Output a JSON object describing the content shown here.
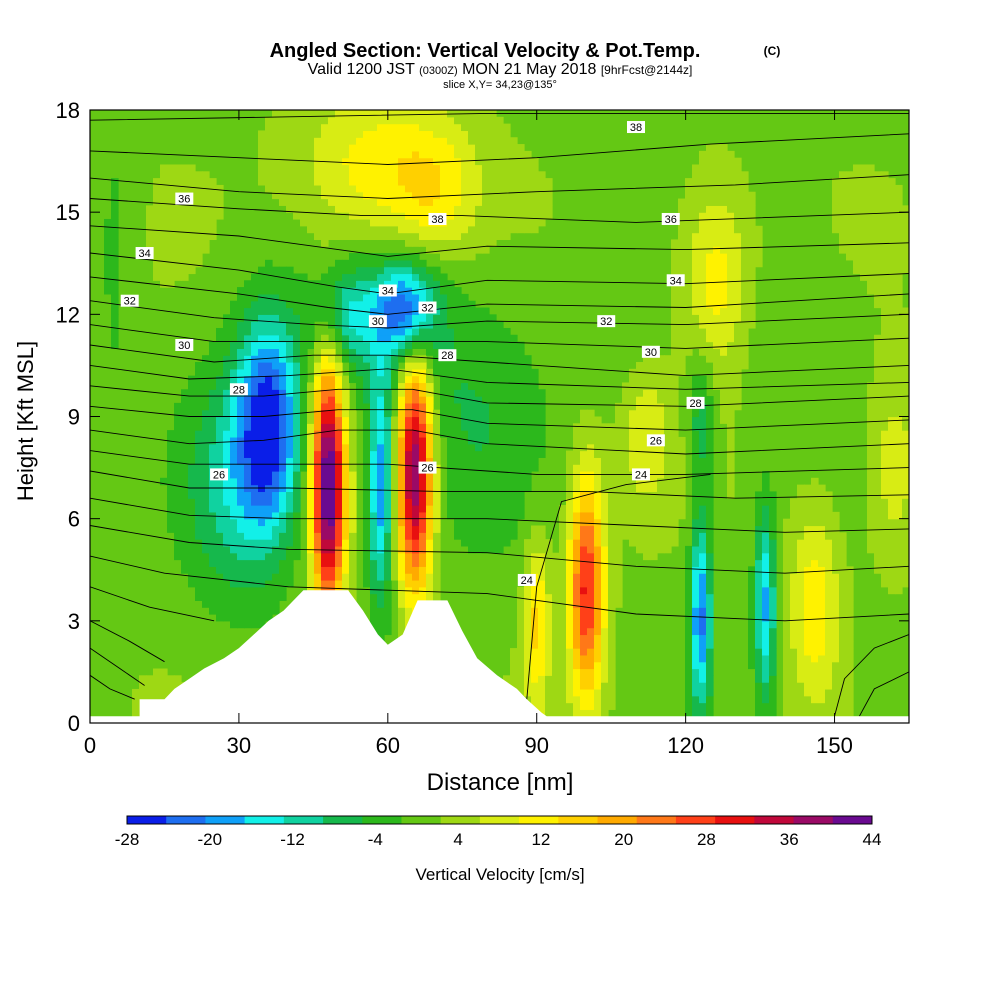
{
  "chart_data": {
    "type": "heatmap",
    "title": "Angled Section: Vertical Velocity & Pot.Temp.",
    "title_unit": "(C)",
    "subtitle_parts": {
      "valid": "Valid 1200 JST",
      "utc": "(0300Z)",
      "date": "MON 21 May 2018",
      "fcst": "[9hrFcst@2144z]"
    },
    "slice_text": "slice X,Y= 34,23@135°",
    "xlabel": "Distance [nm]",
    "ylabel": "Height [Kft MSL]",
    "xlim": [
      0,
      165
    ],
    "ylim": [
      0,
      18
    ],
    "x_ticks": [
      0,
      30,
      60,
      90,
      120,
      150
    ],
    "y_ticks": [
      0,
      3,
      6,
      9,
      12,
      15,
      18
    ],
    "colorbar": {
      "label": "Vertical Velocity [cm/s]",
      "ticks": [
        -28,
        -20,
        -12,
        -4,
        4,
        12,
        20,
        28,
        36,
        44
      ],
      "levels": [
        -28,
        -24,
        -20,
        -16,
        -12,
        -8,
        -4,
        0,
        4,
        8,
        12,
        16,
        20,
        24,
        28,
        32,
        36,
        40,
        44
      ],
      "colors": [
        "#0a1ee8",
        "#1e6ef0",
        "#0fa0f8",
        "#12f0e8",
        "#10d2a0",
        "#16b84c",
        "#2cb81c",
        "#64c814",
        "#9ed814",
        "#d8ec14",
        "#fff200",
        "#ffd000",
        "#ffaa00",
        "#ff7818",
        "#ff4018",
        "#e81010",
        "#c0083a",
        "#9a0a66",
        "#6a0a90"
      ]
    },
    "features": [
      {
        "x": 36,
        "y": 8.8,
        "sx": 4.5,
        "sy": 2.2,
        "w": -28
      },
      {
        "x": 29,
        "y": 7.0,
        "sx": 7,
        "sy": 2.5,
        "w": -12
      },
      {
        "x": 48,
        "y": 7.0,
        "sx": 2.3,
        "sy": 2.6,
        "w": 46
      },
      {
        "x": 58.5,
        "y": 6.8,
        "sx": 1.8,
        "sy": 2.3,
        "w": -22
      },
      {
        "x": 65.5,
        "y": 7.5,
        "sx": 2.5,
        "sy": 2.5,
        "w": 42
      },
      {
        "x": 64,
        "y": 12.2,
        "sx": 4,
        "sy": 1.0,
        "w": -24
      },
      {
        "x": 52,
        "y": 12.0,
        "sx": 5,
        "sy": 1.0,
        "w": -12
      },
      {
        "x": 60,
        "y": 11.0,
        "sx": 9,
        "sy": 2.0,
        "w": -6
      },
      {
        "x": 78,
        "y": 9.0,
        "sx": 9,
        "sy": 3.0,
        "w": -6
      },
      {
        "x": 58,
        "y": 16.3,
        "sx": 11,
        "sy": 1.6,
        "w": 12
      },
      {
        "x": 70,
        "y": 15.5,
        "sx": 6,
        "sy": 1.4,
        "w": 8
      },
      {
        "x": 100,
        "y": 4.0,
        "sx": 2.5,
        "sy": 2.3,
        "w": 30
      },
      {
        "x": 90,
        "y": 3.0,
        "sx": 1.8,
        "sy": 1.8,
        "w": 14
      },
      {
        "x": 123,
        "y": 3.2,
        "sx": 1.5,
        "sy": 2.0,
        "w": -24
      },
      {
        "x": 123,
        "y": 9.0,
        "sx": 2.0,
        "sy": 1.5,
        "w": -10
      },
      {
        "x": 136,
        "y": 3.5,
        "sx": 1.5,
        "sy": 2.0,
        "w": -20
      },
      {
        "x": 146,
        "y": 3.5,
        "sx": 3.5,
        "sy": 2.0,
        "w": 12
      },
      {
        "x": 126,
        "y": 13.0,
        "sx": 5,
        "sy": 2.0,
        "w": 12
      },
      {
        "x": 112,
        "y": 8.5,
        "sx": 3.5,
        "sy": 1.5,
        "w": 8
      },
      {
        "x": 162,
        "y": 7.5,
        "sx": 4,
        "sy": 2.0,
        "w": 8
      },
      {
        "x": 5,
        "y": 14.0,
        "sx": 3,
        "sy": 4.0,
        "w": -4
      },
      {
        "x": 105,
        "y": 11.5,
        "sx": 8,
        "sy": 1.5,
        "w": -3
      },
      {
        "x": 140,
        "y": 11.0,
        "sx": 8,
        "sy": 2.0,
        "w": -3
      },
      {
        "x": 160,
        "y": 1.5,
        "sx": 4,
        "sy": 1.2,
        "w": -3
      }
    ],
    "terrain": [
      [
        0,
        0.2
      ],
      [
        10,
        0.2
      ],
      [
        10,
        0.7
      ],
      [
        15,
        0.7
      ],
      [
        17,
        1.0
      ],
      [
        20,
        1.3
      ],
      [
        23,
        1.6
      ],
      [
        27,
        1.9
      ],
      [
        30,
        2.2
      ],
      [
        33,
        2.6
      ],
      [
        36,
        3.0
      ],
      [
        39,
        3.3
      ],
      [
        43,
        3.9
      ],
      [
        52,
        3.9
      ],
      [
        55,
        3.3
      ],
      [
        58,
        2.6
      ],
      [
        60,
        2.3
      ],
      [
        63,
        2.6
      ],
      [
        66,
        3.6
      ],
      [
        72,
        3.6
      ],
      [
        75,
        2.7
      ],
      [
        78,
        1.9
      ],
      [
        82,
        1.4
      ],
      [
        86,
        1.0
      ],
      [
        88,
        0.7
      ],
      [
        91,
        0.3
      ],
      [
        92,
        0.2
      ],
      [
        165,
        0.2
      ]
    ],
    "theta_lines": [
      {
        "label": "",
        "pts": [
          [
            0,
            17.7
          ],
          [
            40,
            17.8
          ],
          [
            80,
            17.9
          ],
          [
            120,
            17.9
          ],
          [
            165,
            17.9
          ]
        ]
      },
      {
        "label": "38",
        "pts": [
          [
            0,
            16.8
          ],
          [
            30,
            16.6
          ],
          [
            60,
            16.4
          ],
          [
            90,
            16.6
          ],
          [
            125,
            17.0
          ],
          [
            165,
            17.3
          ]
        ]
      },
      {
        "label": "",
        "pts": [
          [
            0,
            16.0
          ],
          [
            30,
            15.6
          ],
          [
            60,
            15.4
          ],
          [
            90,
            15.6
          ],
          [
            130,
            15.8
          ],
          [
            165,
            16.1
          ]
        ]
      },
      {
        "label": "36",
        "pts": [
          [
            0,
            15.4
          ],
          [
            30,
            15.1
          ],
          [
            55,
            14.9
          ],
          [
            75,
            14.9
          ],
          [
            110,
            14.7
          ],
          [
            165,
            15.0
          ]
        ]
      },
      {
        "label": "",
        "pts": [
          [
            0,
            14.6
          ],
          [
            30,
            14.3
          ],
          [
            50,
            13.9
          ],
          [
            60,
            13.7
          ],
          [
            80,
            14.0
          ],
          [
            120,
            13.9
          ],
          [
            165,
            14.1
          ]
        ]
      },
      {
        "label": "34",
        "pts": [
          [
            0,
            13.8
          ],
          [
            30,
            13.3
          ],
          [
            50,
            12.8
          ],
          [
            60,
            12.6
          ],
          [
            80,
            13.0
          ],
          [
            120,
            12.9
          ],
          [
            165,
            13.2
          ]
        ]
      },
      {
        "label": "",
        "pts": [
          [
            0,
            13.1
          ],
          [
            30,
            12.6
          ],
          [
            48,
            12.2
          ],
          [
            60,
            12.0
          ],
          [
            80,
            12.3
          ],
          [
            120,
            12.2
          ],
          [
            165,
            12.6
          ]
        ]
      },
      {
        "label": "32",
        "pts": [
          [
            0,
            12.4
          ],
          [
            25,
            11.9
          ],
          [
            45,
            11.7
          ],
          [
            60,
            11.6
          ],
          [
            80,
            11.8
          ],
          [
            120,
            11.7
          ],
          [
            165,
            12.0
          ]
        ]
      },
      {
        "label": "",
        "pts": [
          [
            0,
            11.7
          ],
          [
            25,
            11.2
          ],
          [
            45,
            11.2
          ],
          [
            60,
            11.2
          ],
          [
            80,
            11.2
          ],
          [
            120,
            11.0
          ],
          [
            165,
            11.3
          ]
        ]
      },
      {
        "label": "30",
        "pts": [
          [
            0,
            11.1
          ],
          [
            25,
            10.6
          ],
          [
            45,
            10.8
          ],
          [
            60,
            10.8
          ],
          [
            80,
            10.6
          ],
          [
            120,
            10.2
          ],
          [
            165,
            10.5
          ]
        ]
      },
      {
        "label": "",
        "pts": [
          [
            0,
            10.5
          ],
          [
            20,
            10.1
          ],
          [
            40,
            10.2
          ],
          [
            60,
            10.4
          ],
          [
            80,
            10.0
          ],
          [
            120,
            9.8
          ],
          [
            165,
            10.0
          ]
        ]
      },
      {
        "label": "28",
        "pts": [
          [
            0,
            9.9
          ],
          [
            20,
            9.6
          ],
          [
            35,
            9.6
          ],
          [
            50,
            9.8
          ],
          [
            65,
            9.8
          ],
          [
            80,
            9.4
          ],
          [
            120,
            9.3
          ],
          [
            165,
            9.6
          ]
        ]
      },
      {
        "label": "",
        "pts": [
          [
            0,
            9.3
          ],
          [
            20,
            9.0
          ],
          [
            35,
            9.0
          ],
          [
            50,
            9.2
          ],
          [
            65,
            9.2
          ],
          [
            80,
            8.8
          ],
          [
            120,
            8.6
          ],
          [
            165,
            8.9
          ]
        ]
      },
      {
        "label": "26",
        "pts": [
          [
            0,
            8.6
          ],
          [
            20,
            8.2
          ],
          [
            35,
            8.3
          ],
          [
            50,
            8.6
          ],
          [
            65,
            8.6
          ],
          [
            80,
            8.2
          ],
          [
            120,
            7.9
          ],
          [
            165,
            8.2
          ]
        ]
      },
      {
        "label": "",
        "pts": [
          [
            0,
            8.0
          ],
          [
            20,
            7.6
          ],
          [
            35,
            7.6
          ],
          [
            60,
            7.6
          ],
          [
            90,
            7.3
          ],
          [
            120,
            7.3
          ],
          [
            165,
            7.5
          ]
        ]
      },
      {
        "label": "24",
        "pts": [
          [
            0,
            7.4
          ],
          [
            20,
            6.9
          ],
          [
            40,
            6.9
          ],
          [
            70,
            6.8
          ],
          [
            100,
            6.8
          ],
          [
            130,
            6.6
          ],
          [
            165,
            6.7
          ]
        ]
      },
      {
        "label": "",
        "pts": [
          [
            0,
            6.6
          ],
          [
            20,
            6.1
          ],
          [
            40,
            6.0
          ],
          [
            80,
            6.0
          ],
          [
            110,
            5.8
          ],
          [
            140,
            5.6
          ],
          [
            165,
            5.7
          ]
        ]
      },
      {
        "label": "",
        "pts": [
          [
            0,
            5.8
          ],
          [
            20,
            5.3
          ],
          [
            40,
            5.1
          ],
          [
            80,
            5.0
          ],
          [
            110,
            4.6
          ],
          [
            140,
            4.4
          ],
          [
            165,
            4.6
          ]
        ]
      },
      {
        "label": "",
        "pts": [
          [
            0,
            4.9
          ],
          [
            15,
            4.4
          ],
          [
            40,
            4.0
          ],
          [
            80,
            3.8
          ],
          [
            110,
            3.2
          ],
          [
            140,
            3.0
          ],
          [
            165,
            3.2
          ]
        ]
      },
      {
        "label": "",
        "pts": [
          [
            0,
            4.0
          ],
          [
            12,
            3.4
          ],
          [
            25,
            3.0
          ]
        ]
      },
      {
        "label": "",
        "pts": [
          [
            0,
            3.0
          ],
          [
            8,
            2.4
          ],
          [
            15,
            1.8
          ]
        ]
      },
      {
        "label": "",
        "pts": [
          [
            0,
            2.2
          ],
          [
            6,
            1.6
          ],
          [
            11,
            1.1
          ]
        ]
      },
      {
        "label": "",
        "pts": [
          [
            0,
            1.4
          ],
          [
            4,
            1.0
          ],
          [
            9,
            0.7
          ]
        ]
      },
      {
        "label": "",
        "pts": [
          [
            88,
            0.7
          ],
          [
            90,
            4.0
          ],
          [
            95,
            6.5
          ],
          [
            108,
            7.0
          ],
          [
            125,
            7.3
          ]
        ]
      },
      {
        "label": "",
        "pts": [
          [
            150,
            0.2
          ],
          [
            152,
            1.3
          ],
          [
            158,
            2.2
          ],
          [
            165,
            2.6
          ]
        ]
      },
      {
        "label": "",
        "pts": [
          [
            155,
            0.2
          ],
          [
            158,
            1.0
          ],
          [
            165,
            1.5
          ]
        ]
      }
    ],
    "theta_labels": [
      {
        "text": "38",
        "x": 110,
        "y": 17.5
      },
      {
        "text": "36",
        "x": 19,
        "y": 15.4
      },
      {
        "text": "36",
        "x": 117,
        "y": 14.8
      },
      {
        "text": "38",
        "x": 70,
        "y": 14.8
      },
      {
        "text": "34",
        "x": 11,
        "y": 13.8
      },
      {
        "text": "34",
        "x": 60,
        "y": 12.7
      },
      {
        "text": "34",
        "x": 118,
        "y": 13.0
      },
      {
        "text": "32",
        "x": 8,
        "y": 12.4
      },
      {
        "text": "32",
        "x": 68,
        "y": 12.2
      },
      {
        "text": "32",
        "x": 104,
        "y": 11.8
      },
      {
        "text": "30",
        "x": 19,
        "y": 11.1
      },
      {
        "text": "30",
        "x": 58,
        "y": 11.8
      },
      {
        "text": "30",
        "x": 113,
        "y": 10.9
      },
      {
        "text": "28",
        "x": 30,
        "y": 9.8
      },
      {
        "text": "28",
        "x": 72,
        "y": 10.8
      },
      {
        "text": "28",
        "x": 122,
        "y": 9.4
      },
      {
        "text": "26",
        "x": 26,
        "y": 7.3
      },
      {
        "text": "26",
        "x": 68,
        "y": 7.5
      },
      {
        "text": "26",
        "x": 114,
        "y": 8.3
      },
      {
        "text": "24",
        "x": 111,
        "y": 7.3
      },
      {
        "text": "24",
        "x": 88,
        "y": 4.2
      }
    ]
  }
}
